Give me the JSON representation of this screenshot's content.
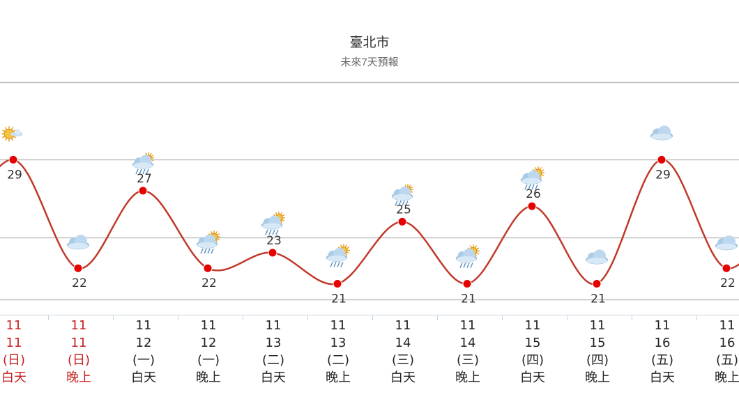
{
  "title": "臺北市",
  "subtitle": "未來7天預報",
  "colors": {
    "line": "#c0392b",
    "point": "#e60000",
    "grid": "#c0c0c0",
    "weekend_text": "#c81e1e",
    "weekday_text": "#222222",
    "value_text": "#333333"
  },
  "chart_data": {
    "type": "line",
    "title": "臺北市",
    "subtitle": "未來7天預報",
    "xlabel": "",
    "ylabel": "",
    "grid": true,
    "legend": "none",
    "categories": [
      {
        "month": "11",
        "day": "11",
        "weekday": "(日)",
        "period": "白天",
        "weekend": true,
        "icon": "sunny-cloud-icon"
      },
      {
        "month": "11",
        "day": "11",
        "weekday": "(日)",
        "period": "晚上",
        "weekend": true,
        "icon": "cloudy-icon"
      },
      {
        "month": "11",
        "day": "12",
        "weekday": "(一)",
        "period": "白天",
        "weekend": false,
        "icon": "cloud-rain-icon"
      },
      {
        "month": "11",
        "day": "12",
        "weekday": "(一)",
        "period": "晚上",
        "weekend": false,
        "icon": "cloud-sun-rain-icon"
      },
      {
        "month": "11",
        "day": "13",
        "weekday": "(二)",
        "period": "白天",
        "weekend": false,
        "icon": "cloud-sun-rain-icon"
      },
      {
        "month": "11",
        "day": "13",
        "weekday": "(二)",
        "period": "晚上",
        "weekend": false,
        "icon": "cloud-sun-rain-icon"
      },
      {
        "month": "11",
        "day": "14",
        "weekday": "(三)",
        "period": "白天",
        "weekend": false,
        "icon": "cloud-rain-icon"
      },
      {
        "month": "11",
        "day": "14",
        "weekday": "(三)",
        "period": "晚上",
        "weekend": false,
        "icon": "cloud-sun-rain-icon"
      },
      {
        "month": "11",
        "day": "15",
        "weekday": "(四)",
        "period": "白天",
        "weekend": false,
        "icon": "cloud-sun-rain-icon"
      },
      {
        "month": "11",
        "day": "15",
        "weekday": "(四)",
        "period": "晚上",
        "weekend": false,
        "icon": "cloudy-icon"
      },
      {
        "month": "11",
        "day": "16",
        "weekday": "(五)",
        "period": "白天",
        "weekend": false,
        "icon": "cloudy-icon"
      },
      {
        "month": "11",
        "day": "16",
        "weekday": "(五)",
        "period": "晚上",
        "weekend": false,
        "icon": "cloudy-icon"
      }
    ],
    "series": [
      {
        "values": [
          29,
          22,
          27,
          22,
          23,
          21,
          25,
          21,
          26,
          21,
          29,
          22
        ]
      }
    ],
    "ylim": [
      19,
      34
    ]
  }
}
